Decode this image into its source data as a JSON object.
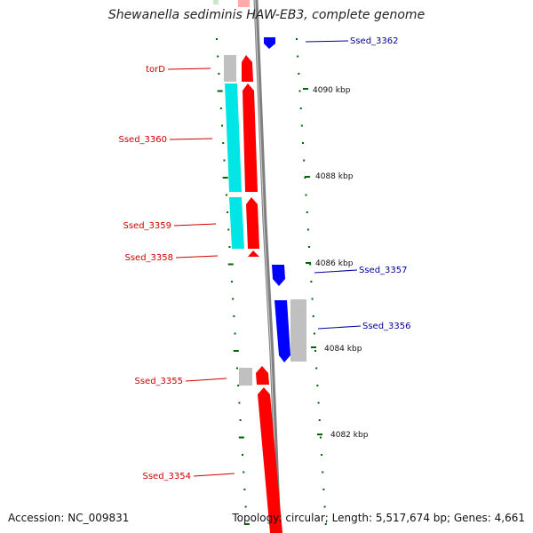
{
  "title": "Shewanella sediminis HAW-EB3, complete genome",
  "footer": {
    "accession": "Accession: NC_009831",
    "summary": "Topology: circular; Length: 5,517,674 bp; Genes: 4,661"
  },
  "colors": {
    "forward_gene": "#ff0000",
    "reverse_gene": "#0000ff",
    "other_feature": "#c0c0c0",
    "cyan_feature": "#00ffff",
    "backbone": "#808080",
    "tick": "#006400",
    "forward_label": "#cc0000",
    "reverse_label": "#000099"
  },
  "scale": {
    "labels": [
      {
        "text": "4090 kbp",
        "kbp": 4090
      },
      {
        "text": "4088 kbp",
        "kbp": 4088
      },
      {
        "text": "4086 kbp",
        "kbp": 4086
      },
      {
        "text": "4084 kbp",
        "kbp": 4084
      },
      {
        "text": "4082 kbp",
        "kbp": 4082
      }
    ]
  },
  "gene_labels": {
    "forward": [
      "torD",
      "Ssed_3360",
      "Ssed_3359",
      "Ssed_3358",
      "Ssed_3355",
      "Ssed_3354"
    ],
    "reverse": [
      "Ssed_3362",
      "Ssed_3357",
      "Ssed_3356"
    ]
  }
}
